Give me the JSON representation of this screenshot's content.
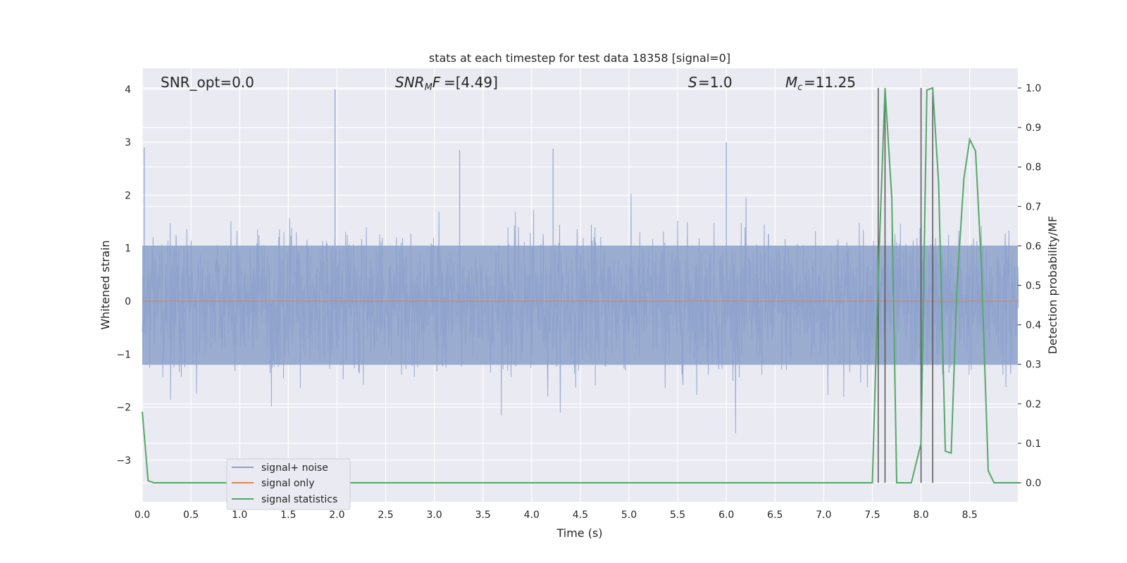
{
  "chart_data": {
    "type": "line",
    "title": "stats at each timestep for test data 18358 [signal=0]",
    "xlabel": "Time (s)",
    "ylabel_left": "Whitened strain",
    "ylabel_right": "Detection probability/MF",
    "xlim": [
      0.0,
      9.0
    ],
    "ylim_left": [
      -3.8,
      4.35
    ],
    "ylim_right": [
      -0.05,
      1.04
    ],
    "grid": true,
    "legend_position": "lower-left",
    "x_ticks": [
      "0.0",
      "0.5",
      "1.0",
      "1.5",
      "2.0",
      "2.5",
      "3.0",
      "3.5",
      "4.0",
      "4.5",
      "5.0",
      "5.5",
      "6.0",
      "6.5",
      "7.0",
      "7.5",
      "8.0",
      "8.5"
    ],
    "y_ticks_left": [
      "4",
      "3",
      "2",
      "1",
      "0",
      "−1",
      "−2",
      "−3"
    ],
    "y_ticks_right": [
      "1.0",
      "0.9",
      "0.8",
      "0.7",
      "0.6",
      "0.5",
      "0.4",
      "0.3",
      "0.2",
      "0.1",
      "0.0"
    ],
    "annotations": {
      "snr_opt": "SNR_opt=0.0",
      "snr_mf": "=[4.49]",
      "s": "=1.0",
      "mc": "=11.25"
    },
    "series": [
      {
        "name": "signal+ noise",
        "color": "#8ea2cc",
        "description_values": "whitened noise, approx between -2.8 and 4.0"
      },
      {
        "name": "signal only",
        "color": "#dd8452",
        "values_constant": 0.0
      },
      {
        "name": "signal statistics",
        "color": "#55a868",
        "x": [
          0.0,
          0.06,
          0.12,
          0.5,
          1.0,
          2.0,
          3.0,
          4.0,
          5.0,
          6.0,
          7.0,
          7.5,
          7.56,
          7.63,
          7.7,
          7.75,
          7.82,
          7.9,
          8.0,
          8.06,
          8.12,
          8.18,
          8.25,
          8.31,
          8.37,
          8.44,
          8.5,
          8.56,
          8.62,
          8.69,
          8.75,
          8.81,
          8.88,
          8.94,
          9.0
        ],
        "values": [
          0.18,
          0.005,
          0.0,
          0.0,
          0.0,
          0.0,
          0.0,
          0.0,
          0.0,
          0.0,
          0.0,
          0.0,
          0.52,
          1.0,
          0.72,
          0.0,
          0.0,
          0.0,
          0.1,
          0.995,
          1.0,
          0.76,
          0.08,
          0.075,
          0.5,
          0.77,
          0.87,
          0.84,
          0.55,
          0.03,
          0.0,
          0.0,
          0.0,
          0.0,
          0.0
        ]
      }
    ],
    "vertical_markers_x": [
      7.56,
      7.63,
      8.0,
      8.12
    ]
  },
  "legend": {
    "items": [
      {
        "label": "signal+ noise",
        "color": "#8ea2cc"
      },
      {
        "label": "signal only",
        "color": "#dd8452"
      },
      {
        "label": "signal statistics",
        "color": "#55a868"
      }
    ]
  }
}
